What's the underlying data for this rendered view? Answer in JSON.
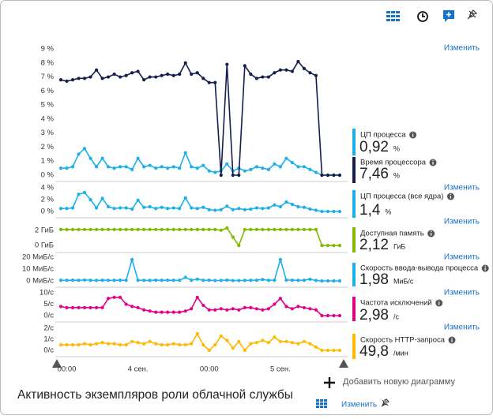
{
  "title": "Активность экземпляров роли облачной службы",
  "add_chart": "Добавить новую диаграмму",
  "edit": "Изменить",
  "chart_data": [
    {
      "type": "line",
      "edit": "Изменить",
      "ylim": [
        0,
        9
      ],
      "yticks": [
        {
          "value": 0,
          "label": "0 %"
        },
        {
          "value": 1,
          "label": "1 %"
        },
        {
          "value": 2,
          "label": "2 %"
        },
        {
          "value": 3,
          "label": "3 %"
        },
        {
          "value": 4,
          "label": "4 %"
        },
        {
          "value": 5,
          "label": "5 %"
        },
        {
          "value": 6,
          "label": "6 %"
        },
        {
          "value": 7,
          "label": "7 %"
        },
        {
          "value": 8,
          "label": "8 %"
        },
        {
          "value": 9,
          "label": "9 %"
        }
      ],
      "series": [
        {
          "name": "ЦП процесса",
          "summary": "0,92",
          "unit": "%",
          "color": "#1cb0ea",
          "values": [
            0.5,
            0.5,
            0.6,
            1.5,
            1.9,
            1.2,
            0.6,
            1.2,
            0.6,
            0.5,
            0.6,
            0.6,
            0.4,
            1.2,
            0.6,
            0.7,
            0.5,
            0.6,
            0.5,
            0.6,
            0.5,
            1.6,
            0.6,
            0.5,
            0.7,
            0.3,
            0.2,
            0.3,
            0.8,
            0.3,
            0.5,
            0.3,
            0.4,
            0.6,
            0.5,
            0.4,
            0.8,
            0.6,
            1.2,
            0.9,
            0.6,
            0.6,
            0.4,
            0.2,
            0,
            0,
            0,
            0
          ]
        },
        {
          "name": "Время процессора",
          "summary": "7,46",
          "unit": "%",
          "color": "#141f4e",
          "values": [
            6.8,
            6.7,
            6.8,
            6.9,
            6.9,
            7.0,
            7.5,
            6.9,
            7.0,
            7.2,
            7.0,
            7.1,
            7.3,
            7.4,
            6.8,
            7.0,
            7.0,
            7.1,
            7.2,
            7.1,
            7.2,
            8.0,
            7.2,
            7.3,
            6.9,
            6.6,
            6.6,
            0,
            7.9,
            0,
            0,
            7.8,
            7.2,
            6.9,
            7.0,
            7.0,
            7.3,
            7.5,
            7.5,
            7.4,
            8.1,
            7.6,
            7.3,
            7.1,
            0,
            0,
            0,
            0
          ]
        }
      ]
    },
    {
      "type": "line",
      "edit": "Изменить",
      "ylim": [
        0,
        4
      ],
      "yticks": [
        {
          "value": 0,
          "label": "0 %"
        },
        {
          "value": 2,
          "label": "2 %"
        },
        {
          "value": 4,
          "label": "4 %"
        }
      ],
      "series": [
        {
          "name": "ЦП процесса (все ядра)",
          "summary": "1,4",
          "unit": "%",
          "color": "#1cb0ea",
          "values": [
            0.5,
            0.5,
            0.6,
            2.9,
            3.2,
            2.0,
            0.6,
            2.2,
            0.8,
            0.5,
            0.6,
            0.6,
            0.4,
            1.9,
            0.7,
            0.8,
            0.5,
            0.7,
            0.5,
            0.6,
            0.5,
            2.3,
            0.6,
            0.5,
            0.7,
            0.3,
            0.2,
            0.3,
            0.9,
            0.3,
            0.5,
            0.3,
            0.4,
            0.6,
            0.5,
            0.6,
            1.1,
            0.8,
            1.6,
            1.2,
            0.8,
            0.7,
            0.4,
            0.2,
            0,
            0,
            0,
            0
          ]
        }
      ]
    },
    {
      "type": "line",
      "edit": "Изменить",
      "ylim": [
        -0.5,
        2.6
      ],
      "yticks": [
        {
          "value": 0,
          "label": "0 ГиБ"
        },
        {
          "value": 2,
          "label": "2 ГиБ"
        }
      ],
      "series": [
        {
          "name": "Доступная память",
          "summary": "2,12",
          "unit": "ГиБ",
          "color": "#7fba00",
          "values": [
            2.1,
            2.1,
            2.1,
            2.1,
            2.1,
            2.1,
            2.1,
            2.1,
            2.1,
            2.1,
            2.1,
            2.1,
            2.1,
            2.1,
            2.1,
            2.1,
            2.1,
            2.1,
            2.1,
            2.1,
            2.1,
            2.1,
            2.1,
            2.1,
            2.1,
            2.1,
            2.1,
            2.0,
            2.3,
            1.1,
            0,
            2.1,
            2.1,
            2.1,
            2.1,
            2.1,
            2.1,
            2.1,
            2.1,
            2.1,
            2.1,
            2.1,
            2.1,
            2.1,
            0,
            0,
            0,
            0
          ]
        }
      ]
    },
    {
      "type": "line",
      "edit": "Изменить",
      "ylim": [
        0,
        20
      ],
      "yticks": [
        {
          "value": 0,
          "label": "0 МиБ/с"
        },
        {
          "value": 10,
          "label": "10 МиБ/с"
        },
        {
          "value": 20,
          "label": "20 МиБ/с"
        }
      ],
      "series": [
        {
          "name": "Скорость ввода-вывода процесса",
          "summary": "1,98",
          "unit": "МиБ/с",
          "color": "#1cb0ea",
          "values": [
            0.5,
            0.5,
            0.6,
            0.5,
            0.8,
            0.5,
            0.4,
            0.6,
            0.5,
            0.5,
            0.6,
            0.5,
            18,
            0.6,
            0.5,
            0.4,
            0.6,
            0.5,
            0.6,
            0.5,
            0.5,
            3,
            0.6,
            1.5,
            0.5,
            0.6,
            0.3,
            0.4,
            0.7,
            0.3,
            0.3,
            0.4,
            0.5,
            0.6,
            1.2,
            0.5,
            0.6,
            18,
            0.7,
            0.6,
            0.5,
            0.6,
            1.4,
            0.4,
            0,
            0,
            0,
            0
          ]
        }
      ]
    },
    {
      "type": "line",
      "edit": "Изменить",
      "ylim": [
        0,
        10
      ],
      "yticks": [
        {
          "value": 0,
          "label": "0/с"
        },
        {
          "value": 5,
          "label": "5/с"
        },
        {
          "value": 10,
          "label": "10/с"
        }
      ],
      "series": [
        {
          "name": "Частота исключений",
          "summary": "2,98",
          "unit": "/с",
          "color": "#e3008c",
          "values": [
            4,
            3.5,
            3.5,
            3.5,
            3.5,
            3.5,
            3.5,
            3.5,
            7.5,
            8,
            8,
            5,
            4,
            3.5,
            2.5,
            2,
            1.5,
            1.5,
            1.5,
            1.5,
            1.5,
            2,
            3,
            8,
            4.5,
            2.5,
            2.5,
            3,
            2.5,
            3,
            2.5,
            3.5,
            3.5,
            3,
            2.5,
            3,
            5,
            7.5,
            4,
            3,
            4,
            3.5,
            3,
            2.5,
            0,
            0,
            0,
            0
          ]
        }
      ]
    },
    {
      "type": "line",
      "edit": "Изменить",
      "ylim": [
        0,
        2
      ],
      "yticks": [
        {
          "value": 0,
          "label": "0/с"
        },
        {
          "value": 1,
          "label": "1/с"
        },
        {
          "value": 2,
          "label": "2/с"
        }
      ],
      "categories": [
        null,
        "00:00",
        null,
        null,
        null,
        null,
        null,
        null,
        null,
        null,
        null,
        null,
        null,
        "4 сен.",
        null,
        null,
        null,
        null,
        null,
        null,
        null,
        null,
        null,
        null,
        null,
        "00:00",
        null,
        null,
        null,
        null,
        null,
        null,
        null,
        null,
        null,
        null,
        null,
        "5 сен.",
        null,
        null,
        null,
        null,
        null,
        null,
        null,
        null,
        null,
        null
      ],
      "series": [
        {
          "name": "Скорость HTTP-запроса",
          "summary": "49,8",
          "unit": "/мин",
          "color": "#ffb900",
          "values": [
            0.5,
            0.5,
            0.5,
            0.5,
            0.6,
            0.5,
            0.6,
            0.7,
            0.6,
            0.6,
            0.5,
            0.5,
            0.8,
            0.7,
            0.6,
            0.8,
            0.6,
            0.5,
            0.5,
            0.6,
            0.5,
            0.5,
            0.6,
            1.5,
            0.5,
            0,
            0.5,
            1.3,
            0.9,
            0.2,
            0.8,
            0,
            0.6,
            0.7,
            0.9,
            0.7,
            1.2,
            0.8,
            0.8,
            0.7,
            0.6,
            0.8,
            0.6,
            0.3,
            0,
            0,
            0,
            0
          ]
        }
      ]
    }
  ]
}
